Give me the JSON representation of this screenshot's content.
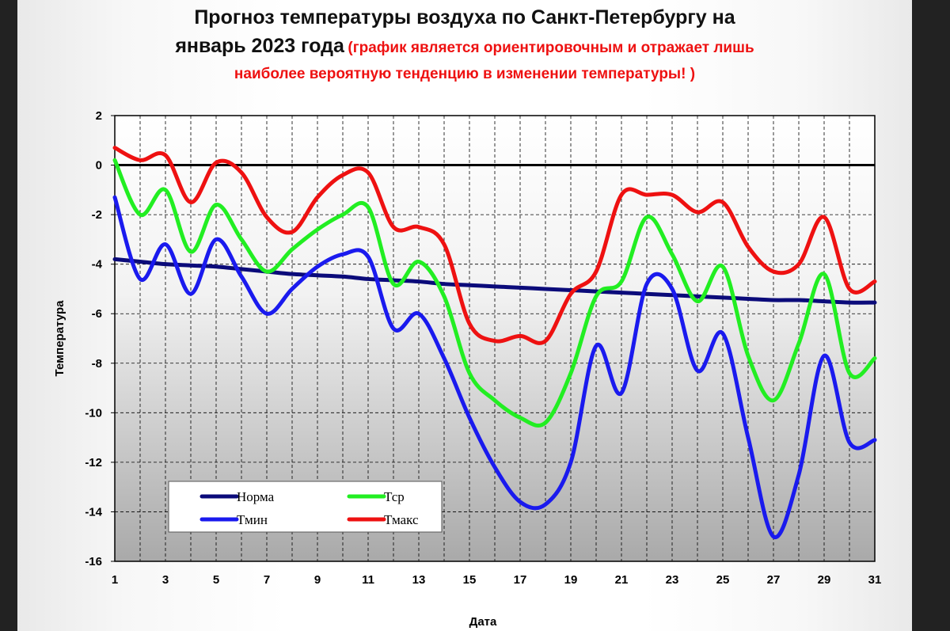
{
  "title": {
    "line1": "Прогноз температуры воздуха по Санкт-Петербургу на",
    "line2_main": "январь 2023 года",
    "line2_note": "(график является ориентировочным и отражает лишь",
    "line3_note": "наиболее вероятную тенденцию в изменении температуры! )"
  },
  "colors": {
    "norm": "#0b0b7a",
    "tsr": "#22ee22",
    "tmin": "#1a1aee",
    "tmax": "#ee1111",
    "zero_line": "#000000"
  },
  "chart_data": {
    "type": "line",
    "title": "",
    "xlabel": "Дата",
    "ylabel": "Температура",
    "xlim": [
      1,
      31
    ],
    "ylim": [
      -16,
      2
    ],
    "x_ticks": [
      1,
      3,
      5,
      7,
      9,
      11,
      13,
      15,
      17,
      19,
      21,
      23,
      25,
      27,
      29,
      31
    ],
    "y_ticks": [
      2,
      0,
      -2,
      -4,
      -6,
      -8,
      -10,
      -12,
      -14,
      -16
    ],
    "grid": true,
    "legend_position": "bottom-left",
    "x": [
      1,
      2,
      3,
      4,
      5,
      6,
      7,
      8,
      9,
      10,
      11,
      12,
      13,
      14,
      15,
      16,
      17,
      18,
      19,
      20,
      21,
      22,
      23,
      24,
      25,
      26,
      27,
      28,
      29,
      30,
      31
    ],
    "series": [
      {
        "name": "Норма",
        "color_key": "norm",
        "values": [
          -3.8,
          -3.9,
          -4.0,
          -4.05,
          -4.1,
          -4.2,
          -4.3,
          -4.4,
          -4.45,
          -4.5,
          -4.6,
          -4.65,
          -4.7,
          -4.8,
          -4.85,
          -4.9,
          -4.95,
          -5.0,
          -5.05,
          -5.1,
          -5.15,
          -5.2,
          -5.25,
          -5.3,
          -5.35,
          -5.4,
          -5.45,
          -5.45,
          -5.5,
          -5.55,
          -5.55
        ]
      },
      {
        "name": "Тср",
        "color_key": "tsr",
        "values": [
          0.2,
          -2.0,
          -1.0,
          -3.5,
          -1.6,
          -3.0,
          -4.3,
          -3.4,
          -2.6,
          -2.0,
          -1.7,
          -4.8,
          -3.9,
          -5.3,
          -8.4,
          -9.5,
          -10.2,
          -10.4,
          -8.4,
          -5.3,
          -4.7,
          -2.1,
          -3.6,
          -5.5,
          -4.1,
          -7.7,
          -9.5,
          -7.2,
          -4.4,
          -8.4,
          -7.8
        ]
      },
      {
        "name": "Тмин",
        "color_key": "tmin",
        "values": [
          -1.3,
          -4.6,
          -3.2,
          -5.2,
          -3.0,
          -4.5,
          -6.0,
          -5.0,
          -4.1,
          -3.6,
          -3.7,
          -6.6,
          -6.0,
          -7.8,
          -10.2,
          -12.2,
          -13.6,
          -13.7,
          -12.0,
          -7.3,
          -9.2,
          -4.8,
          -5.0,
          -8.3,
          -6.8,
          -11.0,
          -15.0,
          -12.5,
          -7.7,
          -11.2,
          -11.1
        ]
      },
      {
        "name": "Тмакс",
        "color_key": "tmax",
        "values": [
          0.7,
          0.2,
          0.4,
          -1.5,
          0.1,
          -0.3,
          -2.1,
          -2.7,
          -1.3,
          -0.4,
          -0.3,
          -2.5,
          -2.5,
          -3.2,
          -6.4,
          -7.1,
          -6.9,
          -7.1,
          -5.2,
          -4.3,
          -1.2,
          -1.2,
          -1.2,
          -1.9,
          -1.5,
          -3.3,
          -4.3,
          -4.0,
          -2.1,
          -5.0,
          -4.7
        ]
      }
    ]
  }
}
